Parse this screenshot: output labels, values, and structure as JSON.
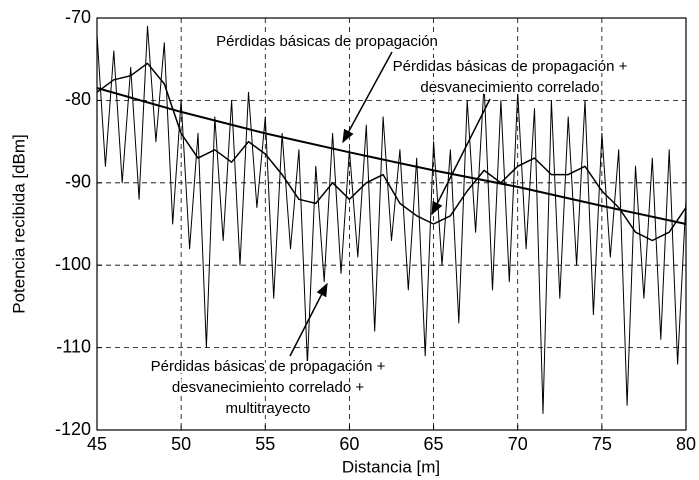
{
  "chart_data": {
    "type": "line",
    "xlabel": "Distancia [m]",
    "ylabel": "Potencia recibida [dBm]",
    "xlim": [
      45,
      80
    ],
    "xticks": [
      45,
      50,
      55,
      60,
      65,
      70,
      75,
      80
    ],
    "ylim": [
      -120,
      -70
    ],
    "yticks": [
      -70,
      -80,
      -90,
      -100,
      -110,
      -120
    ],
    "grid": true,
    "annotations": [
      {
        "lines": [
          "Pérdidas básicas de propagación"
        ]
      },
      {
        "lines": [
          "Pérdidas básicas de propagación +",
          "desvanecimiento correlado"
        ]
      },
      {
        "lines": [
          "Pérdidas básicas de propagación +",
          "desvanecimiento correlado +",
          "multitrayecto"
        ]
      }
    ],
    "series": [
      {
        "color": "#000000",
        "width": 1,
        "x": [
          45,
          45.5,
          46,
          46.5,
          47,
          47.5,
          48,
          48.5,
          49,
          49.5,
          50,
          50.5,
          51,
          51.5,
          52,
          52.5,
          53,
          53.5,
          54,
          54.5,
          55,
          55.5,
          56,
          56.5,
          57,
          57.5,
          58,
          58.5,
          59,
          59.5,
          60,
          60.5,
          61,
          61.5,
          62,
          62.5,
          63,
          63.5,
          64,
          64.5,
          65,
          65.5,
          66,
          66.5,
          67,
          67.5,
          68,
          68.5,
          69,
          69.5,
          70,
          70.5,
          71,
          71.5,
          72,
          72.5,
          73,
          73.5,
          74,
          74.5,
          75,
          75.5,
          76,
          76.5,
          77,
          77.5,
          78,
          78.5,
          79,
          79.5,
          80
        ],
        "values": [
          -72,
          -88,
          -74,
          -90,
          -76,
          -92,
          -71,
          -85,
          -73,
          -95,
          -80,
          -98,
          -84,
          -110,
          -82,
          -97,
          -80,
          -100,
          -79,
          -93,
          -82,
          -104,
          -84,
          -98,
          -86,
          -112,
          -88,
          -102,
          -84,
          -101,
          -86,
          -99,
          -83,
          -108,
          -82,
          -97,
          -86,
          -103,
          -87,
          -111,
          -85,
          -100,
          -86,
          -107,
          -80,
          -96,
          -78,
          -103,
          -80,
          -102,
          -79,
          -98,
          -81,
          -118,
          -80,
          -104,
          -82,
          -100,
          -80,
          -106,
          -84,
          -99,
          -86,
          -117,
          -88,
          -104,
          -87,
          -109,
          -86,
          -112,
          -92
        ]
      },
      {
        "color": "#000000",
        "width": 1.5,
        "x": [
          45,
          46,
          47,
          48,
          49,
          50,
          51,
          52,
          53,
          54,
          55,
          56,
          57,
          58,
          59,
          60,
          61,
          62,
          63,
          64,
          65,
          66,
          67,
          68,
          69,
          70,
          71,
          72,
          73,
          74,
          75,
          76,
          77,
          78,
          79,
          80
        ],
        "values": [
          -79,
          -77.5,
          -77,
          -75.5,
          -78,
          -84,
          -87,
          -86,
          -87.5,
          -85,
          -86.5,
          -89,
          -92,
          -92.5,
          -90,
          -92,
          -90,
          -89,
          -92.5,
          -94,
          -95,
          -94,
          -91,
          -88.5,
          -90,
          -88,
          -87,
          -89,
          -89,
          -88,
          -91,
          -93,
          -96,
          -97,
          -96,
          -93
        ]
      },
      {
        "color": "#000000",
        "width": 2,
        "x": [
          45,
          50,
          55,
          60,
          65,
          70,
          75,
          80
        ],
        "values": [
          -78.5,
          -81.4,
          -84,
          -86.3,
          -88.5,
          -90.5,
          -92.8,
          -95
        ]
      }
    ]
  }
}
